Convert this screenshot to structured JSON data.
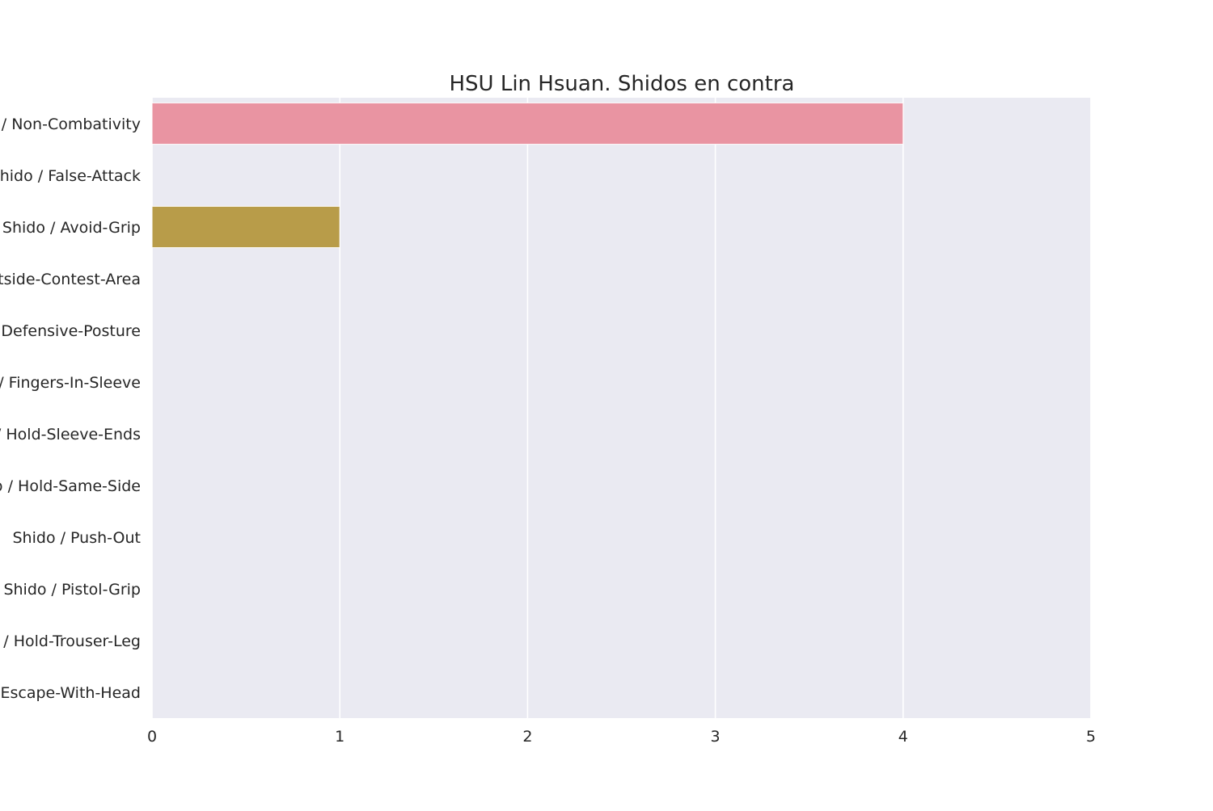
{
  "chart_data": {
    "type": "bar",
    "orientation": "horizontal",
    "title": "HSU Lin Hsuan. Shidos en contra",
    "xlabel": "",
    "ylabel": "",
    "xlim": [
      0,
      5
    ],
    "xticks": [
      0,
      1,
      2,
      3,
      4,
      5
    ],
    "grid": true,
    "categories": [
      "Shido / Non-Combativity",
      "Shido / False-Attack",
      "Shido / Avoid-Grip",
      "Shido / Outside-Contest-Area",
      "Shido / Defensive-Posture",
      "Shido / Fingers-In-Sleeve",
      "Shido / Hold-Sleeve-Ends",
      "Shido / Hold-Same-Side",
      "Shido / Push-Out",
      "Shido / Pistol-Grip",
      "Shido / Hold-Trouser-Leg",
      "Shido / Escape-With-Head"
    ],
    "values": [
      4,
      0,
      1,
      0,
      0,
      0,
      0,
      0,
      0,
      0,
      0,
      0
    ],
    "colors": [
      "#e994a2",
      "#e0a05a",
      "#b89c49",
      "#9caf47",
      "#5fb648",
      "#4bb38f",
      "#4eb0a6",
      "#51acbf",
      "#5aa5dc",
      "#a996e6",
      "#dd87de",
      "#e88ec0"
    ],
    "background_color": "#eaeaf2",
    "grid_color": "#ffffff"
  }
}
